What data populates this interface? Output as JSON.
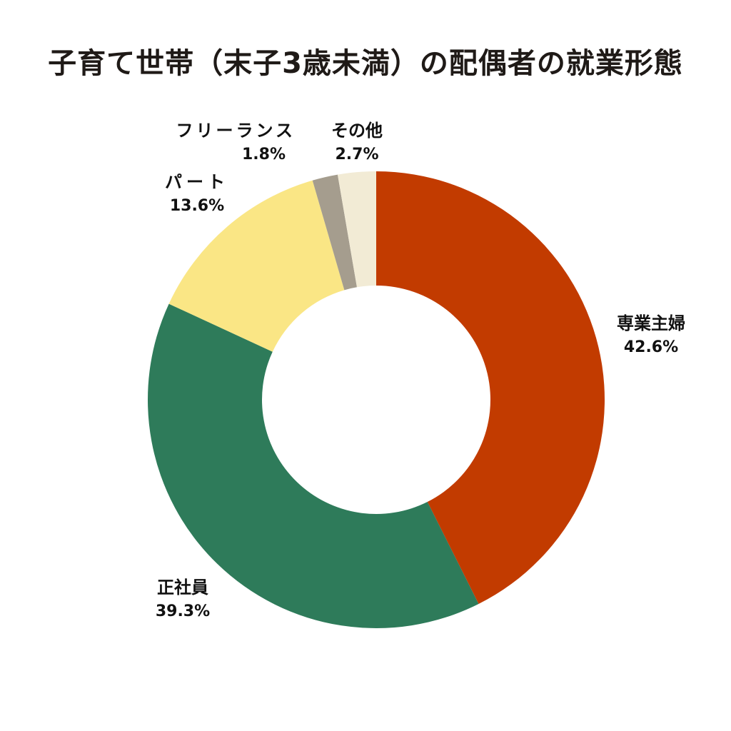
{
  "title": "子育て世帯（末子3歳未満）の配偶者の就業形態",
  "chart_data": {
    "type": "pie",
    "variant": "donut",
    "title": "子育て世帯（末子3歳未満）の配偶者の就業形態",
    "start_angle": "12 o'clock",
    "direction": "clockwise",
    "categories": [
      "専業主婦",
      "正社員",
      "パート",
      "フリーランス",
      "その他"
    ],
    "values": [
      42.6,
      39.3,
      13.6,
      1.8,
      2.7
    ],
    "unit": "%",
    "colors": [
      "#C23B00",
      "#2E7B5A",
      "#FAE685",
      "#A59D8E",
      "#F2EBD5"
    ],
    "labels": [
      {
        "name": "専業主婦",
        "pct": "42.6%"
      },
      {
        "name": "正社員",
        "pct": "39.3%"
      },
      {
        "name": "パート",
        "pct": "13.6%"
      },
      {
        "name": "フリーランス",
        "pct": "1.8%"
      },
      {
        "name": "その他",
        "pct": "2.7%"
      }
    ],
    "legend": "none (direct labels)"
  }
}
